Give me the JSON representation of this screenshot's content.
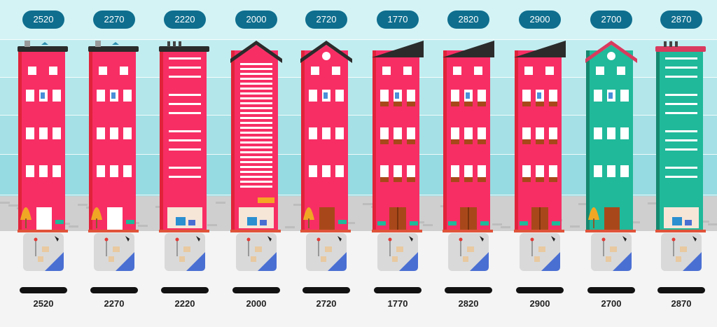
{
  "colors": {
    "badge": "#0f6e8e",
    "pink": "#f72e64",
    "teal": "#20b99a",
    "roof": "#2b2b2b",
    "pink_roof": "#d93a5e",
    "foundation": "#d9d9d9",
    "street": "#cfcfcf",
    "water": "#4a6fd3",
    "tree": "#f0a724",
    "door": "#a8481a",
    "orange_sign": "#f5a623"
  },
  "buildings": [
    {
      "badge": "2520",
      "label": "2520",
      "color": "pink",
      "roof": "flat",
      "facade": "windows",
      "ground": "tree-door"
    },
    {
      "badge": "2270",
      "label": "2270",
      "color": "pink",
      "roof": "flat",
      "facade": "windows",
      "ground": "tree-door"
    },
    {
      "badge": "2220",
      "label": "2220",
      "color": "pink",
      "roof": "flat-chimney",
      "facade": "stripes",
      "ground": "shop"
    },
    {
      "badge": "2000",
      "label": "2000",
      "color": "pink",
      "roof": "gable",
      "facade": "dense-stripes",
      "ground": "shop"
    },
    {
      "badge": "2720",
      "label": "2720",
      "color": "pink",
      "roof": "gable-round",
      "facade": "windows",
      "ground": "tree-door"
    },
    {
      "badge": "1770",
      "label": "1770",
      "color": "pink",
      "roof": "slanted",
      "facade": "shutters",
      "ground": "door"
    },
    {
      "badge": "2820",
      "label": "2820",
      "color": "pink",
      "roof": "slanted",
      "facade": "shutters",
      "ground": "door"
    },
    {
      "badge": "2900",
      "label": "2900",
      "color": "pink",
      "roof": "slanted",
      "facade": "shutters",
      "ground": "door"
    },
    {
      "badge": "2700",
      "label": "2700",
      "color": "teal",
      "roof": "gable-round",
      "facade": "windows",
      "ground": "tree-door"
    },
    {
      "badge": "2870",
      "label": "2870",
      "color": "teal",
      "roof": "flat-chimney",
      "facade": "stripes",
      "ground": "shop"
    }
  ]
}
